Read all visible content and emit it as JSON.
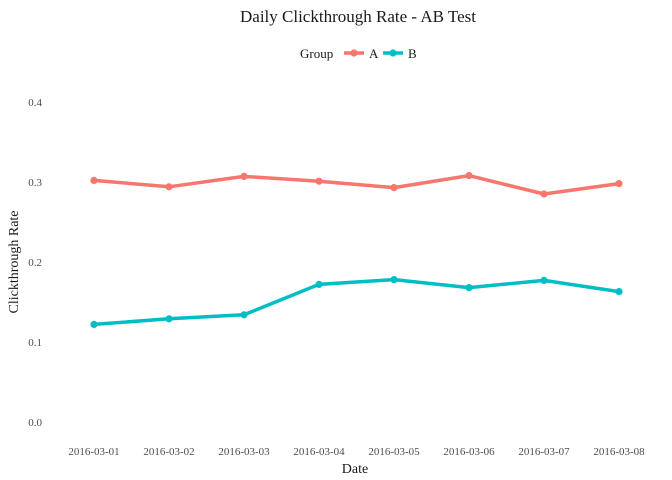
{
  "chart_data": {
    "type": "line",
    "title": "Daily Clickthrough Rate - AB Test",
    "xlabel": "Date",
    "ylabel": "Clickthrough Rate",
    "categories": [
      "2016-03-01",
      "2016-03-02",
      "2016-03-03",
      "2016-03-04",
      "2016-03-05",
      "2016-03-06",
      "2016-03-07",
      "2016-03-08"
    ],
    "ylim": [
      0.0,
      0.4
    ],
    "yticks": [
      "0.0",
      "0.1",
      "0.2",
      "0.3",
      "0.4"
    ],
    "grid": false,
    "legend": {
      "title": "Group",
      "placement": "top"
    },
    "series": [
      {
        "name": "A",
        "color": "#f8766d",
        "values": [
          0.302,
          0.294,
          0.307,
          0.301,
          0.293,
          0.308,
          0.285,
          0.298
        ]
      },
      {
        "name": "B",
        "color": "#00bfc4",
        "values": [
          0.122,
          0.129,
          0.134,
          0.172,
          0.178,
          0.168,
          0.177,
          0.163
        ]
      }
    ]
  }
}
